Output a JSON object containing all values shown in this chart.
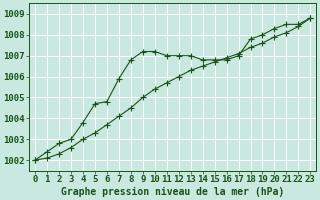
{
  "title": "Graphe pression niveau de la mer (hPa)",
  "background_color": "#c8e8e0",
  "grid_color": "#b0d8d0",
  "line_color": "#1a5218",
  "x_values": [
    0,
    1,
    2,
    3,
    4,
    5,
    6,
    7,
    8,
    9,
    10,
    11,
    12,
    13,
    14,
    15,
    16,
    17,
    18,
    19,
    20,
    21,
    22,
    23
  ],
  "series1": [
    1002.0,
    1002.4,
    1002.8,
    1003.0,
    1003.8,
    1004.7,
    1004.8,
    1005.9,
    1006.8,
    1007.2,
    1007.2,
    1007.0,
    1007.0,
    1007.0,
    1006.8,
    1006.8,
    1006.8,
    1007.0,
    1007.8,
    1008.0,
    1008.3,
    1008.5,
    1008.5,
    1008.8
  ],
  "series2": [
    1002.0,
    1002.1,
    1002.3,
    1002.6,
    1003.0,
    1003.3,
    1003.7,
    1004.1,
    1004.5,
    1005.0,
    1005.4,
    1005.7,
    1006.0,
    1006.3,
    1006.5,
    1006.7,
    1006.9,
    1007.1,
    1007.4,
    1007.6,
    1007.9,
    1008.1,
    1008.4,
    1008.8
  ],
  "ylim": [
    1001.5,
    1009.5
  ],
  "yticks": [
    1002,
    1003,
    1004,
    1005,
    1006,
    1007,
    1008,
    1009
  ],
  "xlim": [
    -0.5,
    23.5
  ],
  "xticks": [
    0,
    1,
    2,
    3,
    4,
    5,
    6,
    7,
    8,
    9,
    10,
    11,
    12,
    13,
    14,
    15,
    16,
    17,
    18,
    19,
    20,
    21,
    22,
    23
  ],
  "tick_fontsize": 6.5,
  "title_fontsize": 7.0,
  "marker1": "+",
  "marker2": "+",
  "marker_size": 4.0,
  "linewidth": 0.8
}
